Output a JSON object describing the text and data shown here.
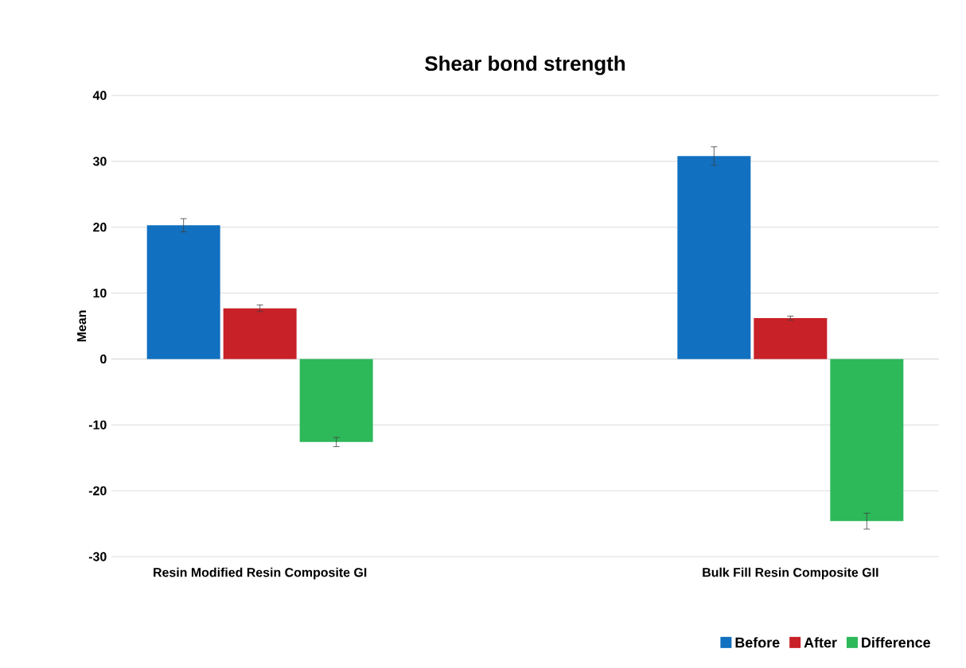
{
  "chart_data": {
    "type": "bar",
    "title": "Shear bond strength",
    "ylabel": "Mean",
    "categories": [
      "Resin Modified Resin Composite GI",
      "Bulk Fill Resin Composite GII"
    ],
    "series": [
      {
        "name": "Before",
        "color": "#1170c0",
        "values": [
          20.3,
          30.8
        ],
        "errors": [
          1.0,
          1.4
        ]
      },
      {
        "name": "After",
        "color": "#c82128",
        "values": [
          7.7,
          6.2
        ],
        "errors": [
          0.5,
          0.3
        ]
      },
      {
        "name": "Difference",
        "color": "#2db85a",
        "values": [
          -12.6,
          -24.6
        ],
        "errors": [
          0.7,
          1.2
        ]
      }
    ],
    "ylim": [
      -30,
      40
    ],
    "yticks": [
      -30,
      -20,
      -10,
      0,
      10,
      20,
      30,
      40
    ],
    "grid": "y",
    "legend": "bottom right"
  }
}
